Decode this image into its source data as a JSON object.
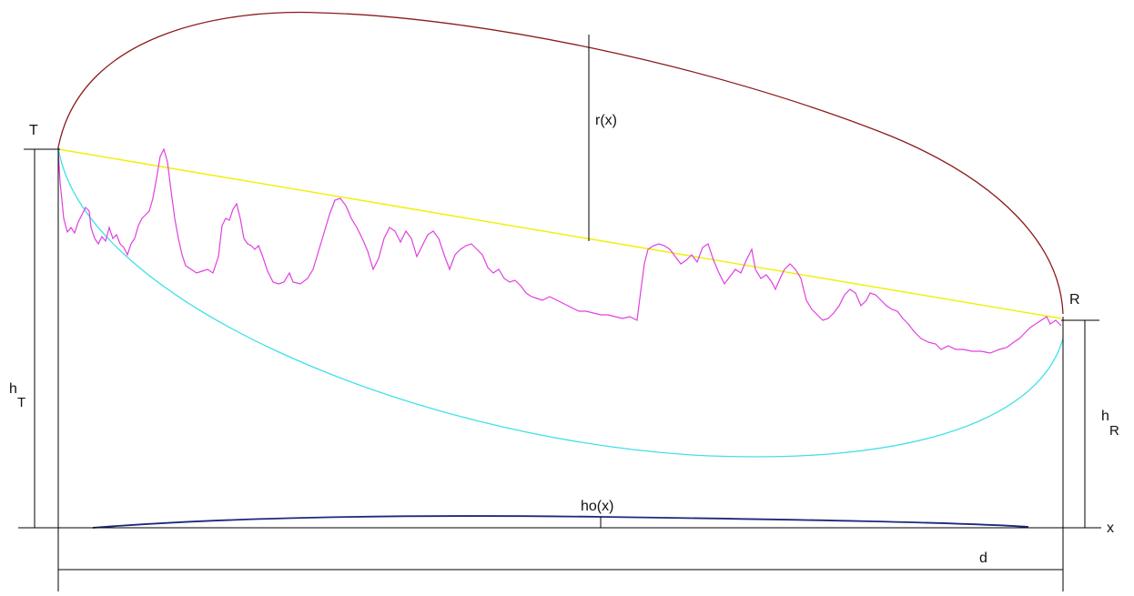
{
  "diagram": {
    "labels": {
      "transmitter": "T",
      "receiver": "R",
      "radius": "r(x)",
      "earth_bulge": "ho(x)",
      "distance": "d",
      "x_axis": "x",
      "h_T_main": "h",
      "h_T_sub": "T",
      "h_R_main": "h",
      "h_R_sub": "R"
    },
    "colors": {
      "ellipse_upper": "#8B1A1A",
      "ellipse_lower": "#40E0E8",
      "line_of_sight": "#F0F000",
      "terrain": "#E040E0",
      "earth_bulge": "#1C2A7A",
      "dimension_lines": "#000000"
    }
  }
}
